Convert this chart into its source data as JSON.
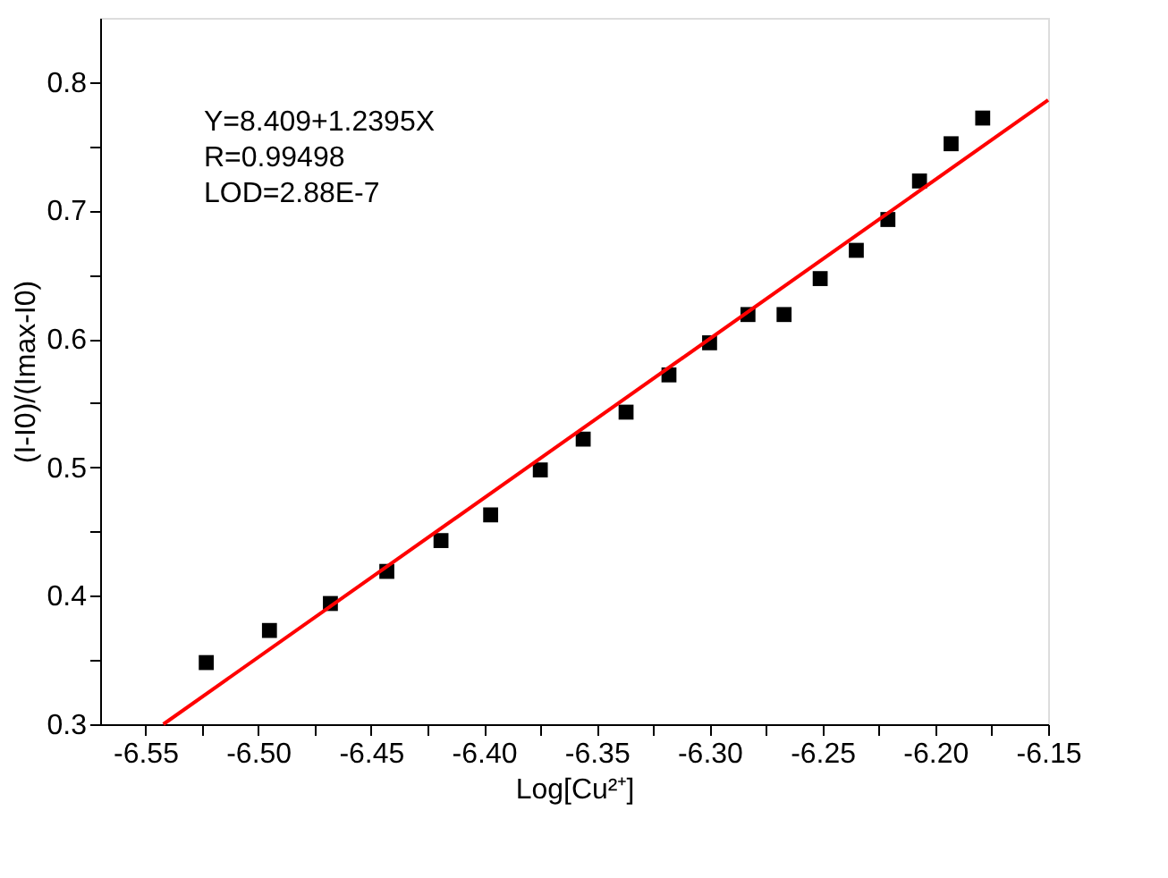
{
  "chart_data": {
    "type": "scatter",
    "xlabel": "Log[Cu²⁺]",
    "ylabel": "(I-I0)/(Imax-I0)",
    "annotations": [
      "Y=8.409+1.2395X",
      "R=0.99498",
      "LOD=2.88E-7"
    ],
    "xlim": [
      -6.57,
      -6.15
    ],
    "ylim": [
      0.3,
      0.85
    ],
    "xticks": [
      {
        "value": -6.55,
        "label": "-6.55"
      },
      {
        "value": -6.525,
        "label": null
      },
      {
        "value": -6.5,
        "label": "-6.50"
      },
      {
        "value": -6.475,
        "label": null
      },
      {
        "value": -6.45,
        "label": "-6.45"
      },
      {
        "value": -6.425,
        "label": null
      },
      {
        "value": -6.4,
        "label": "-6.40"
      },
      {
        "value": -6.375,
        "label": null
      },
      {
        "value": -6.35,
        "label": "-6.35"
      },
      {
        "value": -6.325,
        "label": null
      },
      {
        "value": -6.3,
        "label": "-6.30"
      },
      {
        "value": -6.275,
        "label": null
      },
      {
        "value": -6.25,
        "label": "-6.25"
      },
      {
        "value": -6.225,
        "label": null
      },
      {
        "value": -6.2,
        "label": "-6.20"
      },
      {
        "value": -6.175,
        "label": null
      },
      {
        "value": -6.15,
        "label": "-6.15"
      }
    ],
    "yticks": [
      0.3,
      {
        "value": 0.35,
        "label": null
      },
      0.4,
      {
        "value": 0.45,
        "label": null
      },
      0.5,
      {
        "value": 0.55,
        "label": null
      },
      0.6,
      {
        "value": 0.65,
        "label": null
      },
      0.7,
      {
        "value": 0.75,
        "label": null
      },
      0.8
    ],
    "grid": false,
    "series": [
      {
        "color": "#000000",
        "marker": "square",
        "x": [
          -6.523,
          -6.495,
          -6.468,
          -6.443,
          -6.419,
          -6.397,
          -6.375,
          -6.356,
          -6.337,
          -6.318,
          -6.3,
          -6.283,
          -6.267,
          -6.251,
          -6.235,
          -6.221,
          -6.207,
          -6.193,
          -6.179
        ],
        "values": [
          0.348,
          0.373,
          0.394,
          0.419,
          0.443,
          0.463,
          0.498,
          0.522,
          0.543,
          0.572,
          0.597,
          0.619,
          0.619,
          0.647,
          0.669,
          0.693,
          0.723,
          0.752,
          0.772
        ]
      },
      {
        "type": "line",
        "color": "#ff0000",
        "line_style": "solid",
        "x": [
          -6.542,
          -6.15
        ],
        "values": [
          0.3,
          0.786
        ]
      }
    ]
  }
}
